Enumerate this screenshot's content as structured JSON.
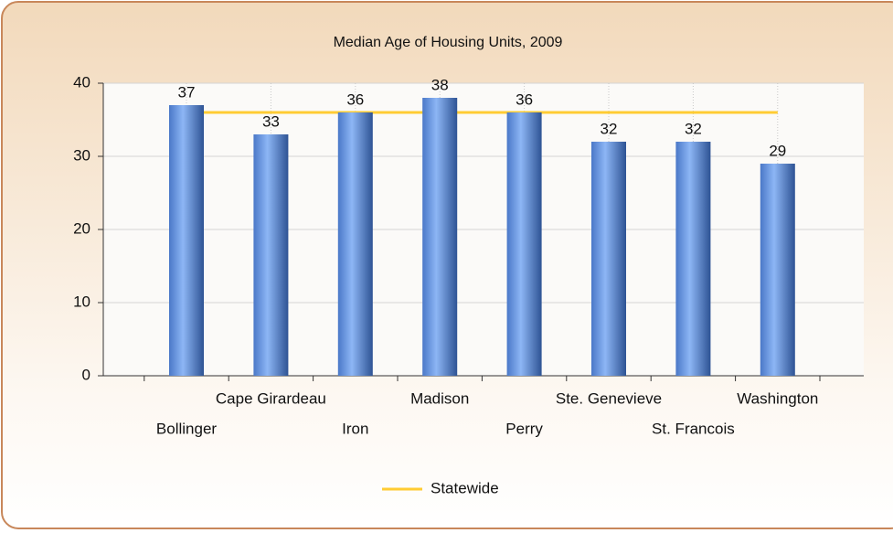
{
  "chart_data": {
    "type": "bar",
    "title": "Median Age of Housing Units, 2009",
    "categories": [
      "Bollinger",
      "Cape Girardeau",
      "Iron",
      "Madison",
      "Perry",
      "Ste. Genevieve",
      "St. Francois",
      "Washington"
    ],
    "values": [
      37,
      33,
      36,
      38,
      36,
      32,
      32,
      29
    ],
    "color": "#5b8fdc",
    "statewide": {
      "name": "Statewide",
      "value": 36,
      "color": "#ffcc33"
    },
    "ylim": [
      0,
      40
    ],
    "yticks": [
      0,
      10,
      20,
      30,
      40
    ],
    "grid": true
  }
}
